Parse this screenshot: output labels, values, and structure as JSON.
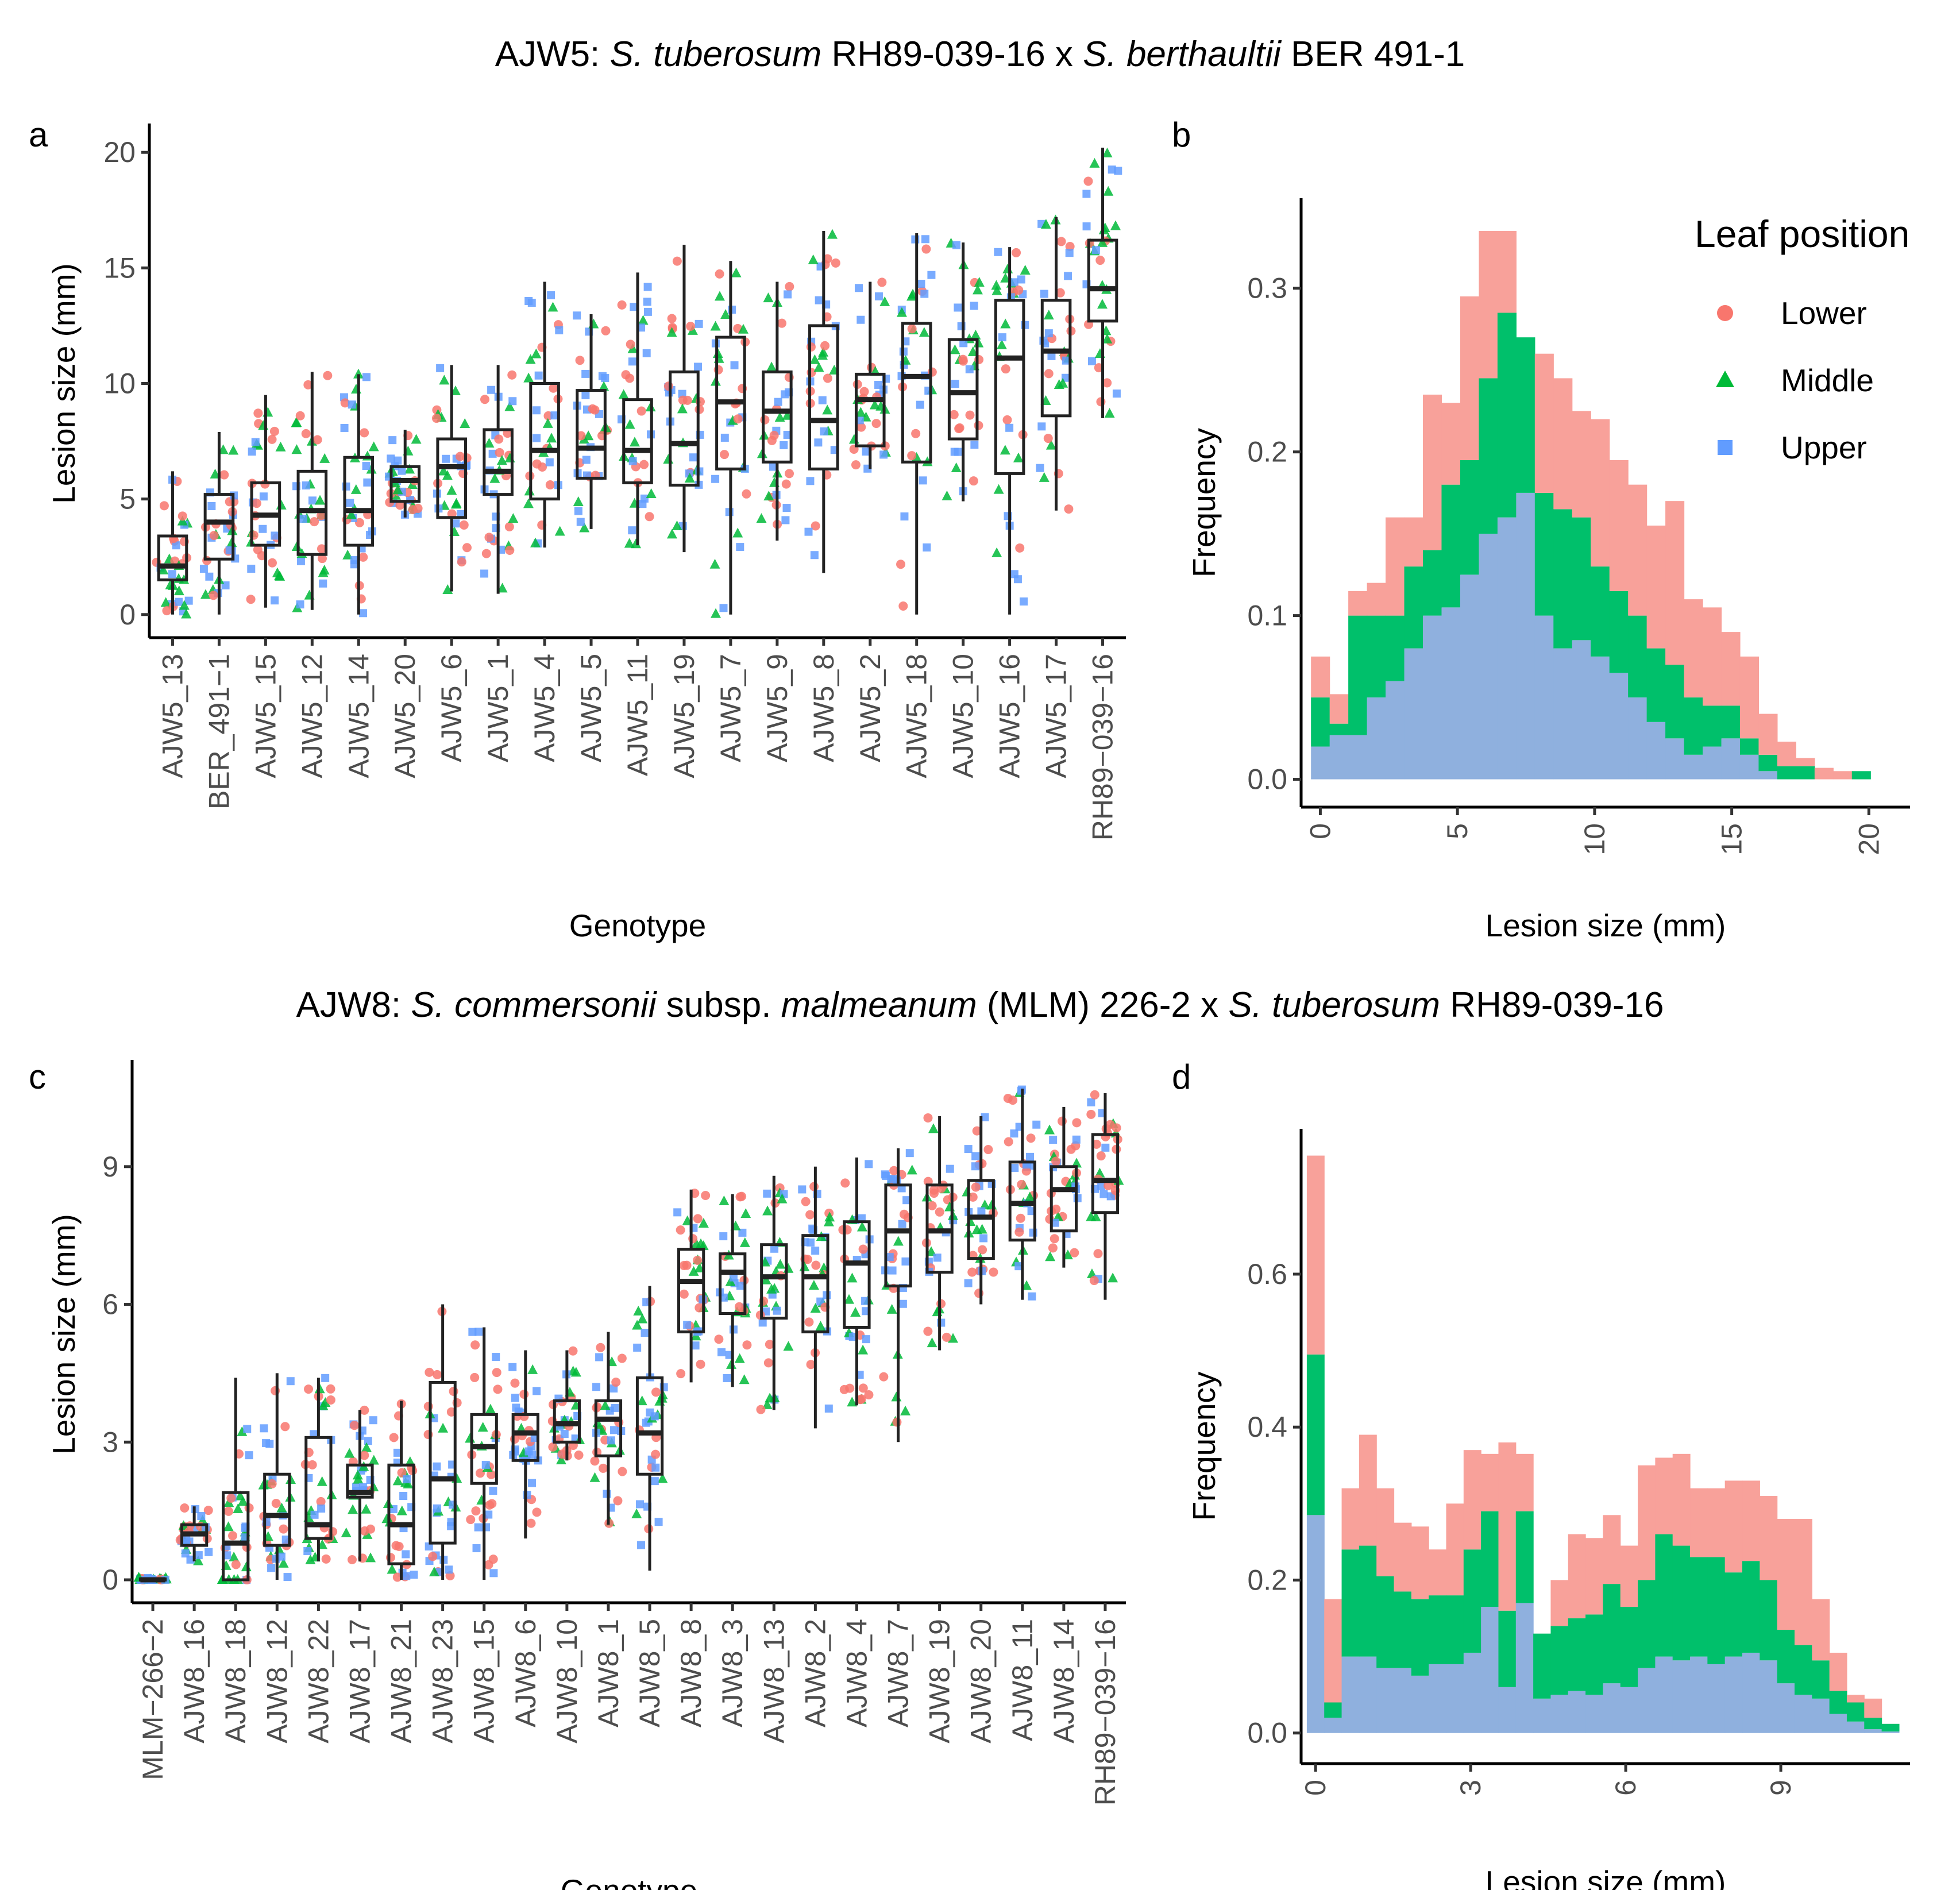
{
  "figure": {
    "title_top": {
      "prefix": "AJW5: ",
      "sp1": "S. tuberosum",
      "mid1": " RH89-039-16 x ",
      "sp2": "S. berthaultii",
      "suffix": " BER 491-1"
    },
    "title_bottom": {
      "prefix": "AJW8: ",
      "sp1": "S. commersonii",
      "mid1": " subsp. ",
      "sp2": "malmeanum",
      "mid2": " (MLM) 226-2 x ",
      "sp3": "S. tuberosum",
      "suffix": " RH89-039-16"
    }
  },
  "legend": {
    "title": "Leaf position",
    "items": [
      {
        "label": "Lower",
        "shape": "circle",
        "color": "#F8766D"
      },
      {
        "label": "Middle",
        "shape": "triangle",
        "color": "#00BA38"
      },
      {
        "label": "Upper",
        "shape": "square",
        "color": "#619CFF"
      }
    ]
  },
  "colors": {
    "lower": "#F8766D",
    "middle": "#00BA38",
    "upper": "#619CFF",
    "lower_fill": "#F8A19A",
    "middle_fill": "#00C06B",
    "upper_fill": "#8FB0DE"
  },
  "chart_data": [
    {
      "panel": "a",
      "type": "box",
      "xlabel": "Genotype",
      "ylabel": "Lesion size (mm)",
      "ylim": [
        -1,
        21
      ],
      "yticks": [
        0,
        5,
        10,
        15,
        20
      ],
      "categories": [
        "AJW5_13",
        "BER_491−1",
        "AJW5_15",
        "AJW5_12",
        "AJW5_14",
        "AJW5_20",
        "AJW5_6",
        "AJW5_1",
        "AJW5_4",
        "AJW5_5",
        "AJW5_11",
        "AJW5_19",
        "AJW5_7",
        "AJW5_9",
        "AJW5_8",
        "AJW5_2",
        "AJW5_18",
        "AJW5_10",
        "AJW5_16",
        "AJW5_17",
        "RH89−039−16"
      ],
      "boxes": [
        {
          "min": 0,
          "q1": 1.5,
          "median": 2.1,
          "q3": 3.4,
          "max": 6.2
        },
        {
          "min": 0,
          "q1": 2.4,
          "median": 4.0,
          "q3": 5.2,
          "max": 7.9
        },
        {
          "min": 0.3,
          "q1": 3.0,
          "median": 4.3,
          "q3": 5.7,
          "max": 9.5
        },
        {
          "min": 0.2,
          "q1": 2.6,
          "median": 4.5,
          "q3": 6.2,
          "max": 10.5
        },
        {
          "min": 0,
          "q1": 3.0,
          "median": 4.5,
          "q3": 6.8,
          "max": 10.4
        },
        {
          "min": 4.2,
          "q1": 4.9,
          "median": 5.8,
          "q3": 6.4,
          "max": 8.0
        },
        {
          "min": 1.0,
          "q1": 4.2,
          "median": 6.4,
          "q3": 7.6,
          "max": 10.8
        },
        {
          "min": 0.9,
          "q1": 5.2,
          "median": 6.2,
          "q3": 8.0,
          "max": 10.8
        },
        {
          "min": 2.9,
          "q1": 5.0,
          "median": 7.1,
          "q3": 10.0,
          "max": 14.4
        },
        {
          "min": 3.7,
          "q1": 5.9,
          "median": 7.2,
          "q3": 9.7,
          "max": 13.0
        },
        {
          "min": 3.0,
          "q1": 5.7,
          "median": 7.1,
          "q3": 9.3,
          "max": 14.8
        },
        {
          "min": 2.7,
          "q1": 5.6,
          "median": 7.4,
          "q3": 10.5,
          "max": 16.0
        },
        {
          "min": 0,
          "q1": 6.3,
          "median": 9.2,
          "q3": 12.0,
          "max": 15.3
        },
        {
          "min": 3.2,
          "q1": 6.6,
          "median": 8.8,
          "q3": 10.5,
          "max": 14.4
        },
        {
          "min": 1.8,
          "q1": 6.3,
          "median": 8.4,
          "q3": 12.5,
          "max": 16.6
        },
        {
          "min": 6.3,
          "q1": 7.3,
          "median": 9.3,
          "q3": 10.4,
          "max": 14.4
        },
        {
          "min": 0,
          "q1": 6.6,
          "median": 10.3,
          "q3": 12.6,
          "max": 16.5
        },
        {
          "min": 4.9,
          "q1": 7.6,
          "median": 9.6,
          "q3": 11.9,
          "max": 16.1
        },
        {
          "min": 0,
          "q1": 6.1,
          "median": 11.1,
          "q3": 13.6,
          "max": 15.9
        },
        {
          "min": 4.5,
          "q1": 8.6,
          "median": 11.4,
          "q3": 13.6,
          "max": 17.2
        },
        {
          "min": 8.5,
          "q1": 12.7,
          "median": 14.1,
          "q3": 16.2,
          "max": 20.2
        }
      ]
    },
    {
      "panel": "b",
      "type": "histogram",
      "xlabel": "Lesion size (mm)",
      "ylabel": "Frequency",
      "xlim": [
        -0.7,
        21.5
      ],
      "ylim": [
        -0.017,
        0.355
      ],
      "xticks": [
        0,
        5,
        10,
        15,
        20
      ],
      "yticks": [
        0.0,
        0.1,
        0.2,
        0.3
      ],
      "bin_width": 0.68,
      "bin_start": -0.34,
      "series": [
        {
          "name": "Upper",
          "values": [
            0.02,
            0.027,
            0.027,
            0.05,
            0.06,
            0.08,
            0.1,
            0.105,
            0.125,
            0.15,
            0.16,
            0.175,
            0.1,
            0.08,
            0.085,
            0.075,
            0.065,
            0.05,
            0.035,
            0.025,
            0.015,
            0.02,
            0.025,
            0.015,
            0.005,
            0.0,
            0.0,
            0.0,
            0.0,
            0.0,
            0.0
          ]
        },
        {
          "name": "Middle",
          "values": [
            0.03,
            0.007,
            0.073,
            0.05,
            0.04,
            0.05,
            0.04,
            0.075,
            0.07,
            0.095,
            0.125,
            0.095,
            0.075,
            0.085,
            0.075,
            0.055,
            0.05,
            0.05,
            0.045,
            0.045,
            0.035,
            0.025,
            0.02,
            0.01,
            0.01,
            0.008,
            0.008,
            0.0,
            0.0,
            0.005,
            0.0
          ]
        },
        {
          "name": "Lower",
          "values": [
            0.025,
            0.018,
            0.015,
            0.02,
            0.06,
            0.03,
            0.095,
            0.05,
            0.1,
            0.09,
            0.05,
            0.0,
            0.085,
            0.08,
            0.065,
            0.09,
            0.08,
            0.08,
            0.075,
            0.1,
            0.06,
            0.06,
            0.045,
            0.05,
            0.025,
            0.015,
            0.005,
            0.007,
            0.005,
            0.0,
            0.0
          ]
        }
      ]
    },
    {
      "panel": "c",
      "type": "box",
      "xlabel": "Genotype",
      "ylabel": "Lesion size (mm)",
      "ylim": [
        -0.5,
        11.2
      ],
      "yticks": [
        0,
        3,
        6,
        9
      ],
      "categories": [
        "MLM−266−2",
        "AJW8_16",
        "AJW8_18",
        "AJW8_12",
        "AJW8_22",
        "AJW8_17",
        "AJW8_21",
        "AJW8_23",
        "AJW8_15",
        "AJW8_6",
        "AJW8_10",
        "AJW8_1",
        "AJW8_5",
        "AJW8_8",
        "AJW8_3",
        "AJW8_13",
        "AJW8_2",
        "AJW8_4",
        "AJW8_7",
        "AJW8_19",
        "AJW8_20",
        "AJW8_11",
        "AJW8_14",
        "RH89−039−16"
      ],
      "boxes": [
        {
          "min": 0,
          "q1": 0,
          "median": 0,
          "q3": 0.02,
          "max": 0.05
        },
        {
          "min": 0.4,
          "q1": 0.75,
          "median": 1.0,
          "q3": 1.2,
          "max": 1.6
        },
        {
          "min": 0,
          "q1": 0,
          "median": 0.8,
          "q3": 1.9,
          "max": 4.4
        },
        {
          "min": 0,
          "q1": 0.75,
          "median": 1.4,
          "q3": 2.3,
          "max": 4.5
        },
        {
          "min": 0.4,
          "q1": 0.9,
          "median": 1.2,
          "q3": 3.1,
          "max": 4.4
        },
        {
          "min": 0.4,
          "q1": 1.8,
          "median": 1.9,
          "q3": 2.5,
          "max": 3.7
        },
        {
          "min": 0,
          "q1": 0.35,
          "median": 1.2,
          "q3": 2.5,
          "max": 3.9
        },
        {
          "min": 0,
          "q1": 0.8,
          "median": 2.2,
          "q3": 4.3,
          "max": 6.0
        },
        {
          "min": 0,
          "q1": 2.1,
          "median": 2.9,
          "q3": 3.6,
          "max": 5.5
        },
        {
          "min": 0.9,
          "q1": 2.6,
          "median": 3.2,
          "q3": 3.6,
          "max": 5.0
        },
        {
          "min": 2.6,
          "q1": 3.0,
          "median": 3.4,
          "q3": 3.9,
          "max": 5.0
        },
        {
          "min": 1.2,
          "q1": 2.7,
          "median": 3.5,
          "q3": 3.9,
          "max": 5.4
        },
        {
          "min": 0.2,
          "q1": 2.3,
          "median": 3.2,
          "q3": 4.4,
          "max": 6.4
        },
        {
          "min": 4.3,
          "q1": 5.4,
          "median": 6.5,
          "q3": 7.2,
          "max": 8.5
        },
        {
          "min": 4.2,
          "q1": 5.8,
          "median": 6.7,
          "q3": 7.1,
          "max": 8.4
        },
        {
          "min": 3.7,
          "q1": 5.7,
          "median": 6.6,
          "q3": 7.3,
          "max": 8.8
        },
        {
          "min": 3.3,
          "q1": 5.4,
          "median": 6.6,
          "q3": 7.5,
          "max": 9.0
        },
        {
          "min": 3.8,
          "q1": 5.5,
          "median": 6.9,
          "q3": 7.8,
          "max": 9.2
        },
        {
          "min": 3.0,
          "q1": 6.4,
          "median": 7.6,
          "q3": 8.6,
          "max": 9.4
        },
        {
          "min": 5.0,
          "q1": 6.7,
          "median": 7.6,
          "q3": 8.6,
          "max": 10.1
        },
        {
          "min": 6.0,
          "q1": 7.0,
          "median": 7.9,
          "q3": 8.7,
          "max": 10.1
        },
        {
          "min": 6.1,
          "q1": 7.4,
          "median": 8.2,
          "q3": 9.1,
          "max": 10.7
        },
        {
          "min": 6.8,
          "q1": 7.6,
          "median": 8.5,
          "q3": 9.0,
          "max": 10.3
        },
        {
          "min": 6.1,
          "q1": 8.0,
          "median": 8.7,
          "q3": 9.7,
          "max": 10.6
        }
      ]
    },
    {
      "panel": "d",
      "type": "histogram",
      "xlabel": "Lesion size (mm)",
      "ylabel": "Frequency",
      "xlim": [
        -0.28,
        11.5
      ],
      "ylim": [
        -0.04,
        0.79
      ],
      "xticks": [
        0,
        3,
        6,
        9
      ],
      "yticks": [
        0.0,
        0.2,
        0.4,
        0.6
      ],
      "bin_width": 0.337,
      "bin_start": -0.17,
      "series": [
        {
          "name": "Upper",
          "values": [
            0.285,
            0.02,
            0.1,
            0.1,
            0.085,
            0.085,
            0.075,
            0.09,
            0.09,
            0.105,
            0.165,
            0.06,
            0.17,
            0.045,
            0.05,
            0.055,
            0.05,
            0.065,
            0.06,
            0.085,
            0.1,
            0.095,
            0.1,
            0.09,
            0.1,
            0.105,
            0.095,
            0.065,
            0.05,
            0.045,
            0.025,
            0.015,
            0.005,
            0.002
          ]
        },
        {
          "name": "Middle",
          "values": [
            0.21,
            0.02,
            0.14,
            0.145,
            0.12,
            0.1,
            0.1,
            0.09,
            0.09,
            0.135,
            0.125,
            0.1,
            0.12,
            0.085,
            0.09,
            0.095,
            0.105,
            0.13,
            0.105,
            0.115,
            0.16,
            0.15,
            0.13,
            0.14,
            0.11,
            0.12,
            0.105,
            0.07,
            0.065,
            0.05,
            0.03,
            0.025,
            0.015,
            0.01
          ]
        },
        {
          "name": "Lower",
          "values": [
            0.26,
            0.135,
            0.08,
            0.145,
            0.115,
            0.09,
            0.095,
            0.06,
            0.12,
            0.13,
            0.075,
            0.22,
            0.075,
            0.0,
            0.06,
            0.11,
            0.1,
            0.09,
            0.08,
            0.15,
            0.1,
            0.12,
            0.09,
            0.09,
            0.12,
            0.105,
            0.11,
            0.145,
            0.165,
            0.08,
            0.05,
            0.01,
            0.025,
            0.0
          ]
        }
      ]
    }
  ]
}
